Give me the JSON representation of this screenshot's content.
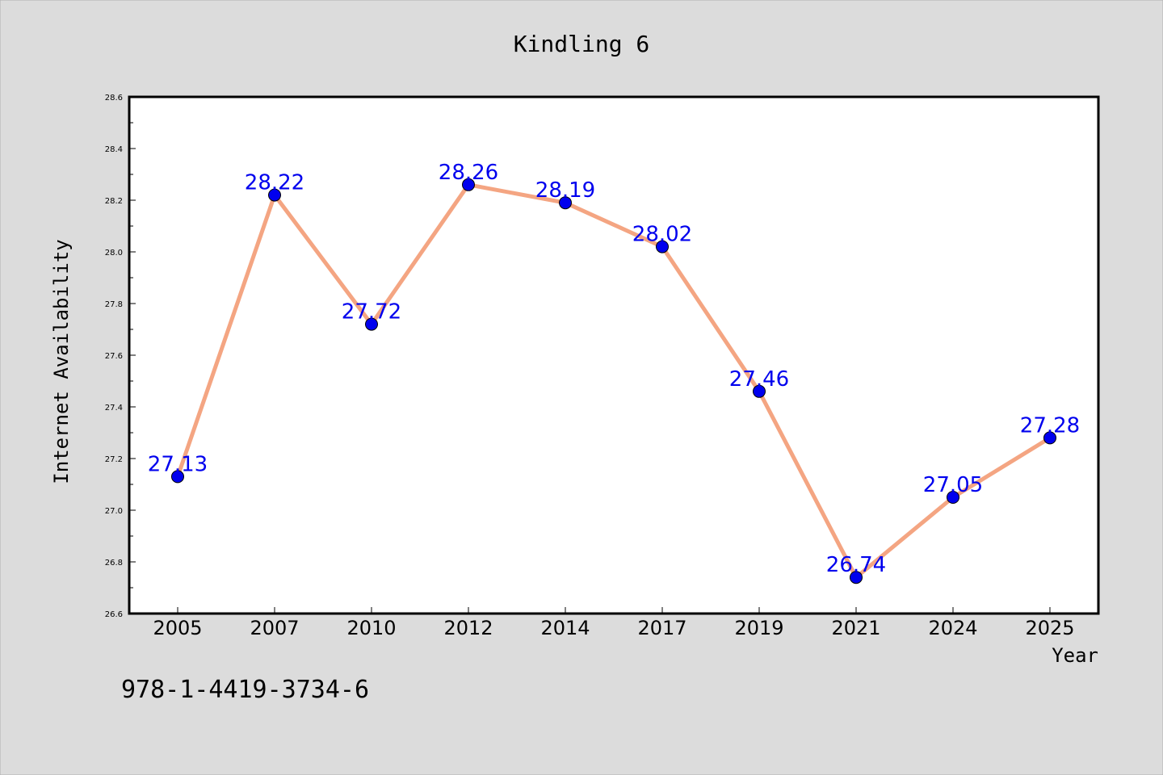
{
  "chart_data": {
    "type": "line",
    "title": "Kindling 6",
    "xlabel": "Year",
    "ylabel": "Internet Availability",
    "categories": [
      "2005",
      "2007",
      "2010",
      "2012",
      "2014",
      "2017",
      "2019",
      "2021",
      "2024",
      "2025"
    ],
    "series": [
      {
        "values": [
          27.13,
          28.22,
          27.72,
          28.26,
          28.19,
          28.02,
          27.46,
          26.74,
          27.05,
          27.28
        ]
      }
    ],
    "data_labels": [
      "27.13",
      "28.22",
      "27.72",
      "28.26",
      "28.19",
      "28.02",
      "27.46",
      "26.74",
      "27.05",
      "27.28"
    ],
    "ylim": [
      26.6,
      28.6
    ],
    "yticks": [
      "26.6",
      "26.8",
      "27.0",
      "27.2",
      "27.4",
      "27.6",
      "27.8",
      "28.0",
      "28.2",
      "28.4",
      "28.6"
    ],
    "grid": false,
    "line_color": "#f4a582",
    "marker_color": "#0000ee",
    "label_color": "#0000ee",
    "annotation": "978-1-4419-3734-6"
  }
}
